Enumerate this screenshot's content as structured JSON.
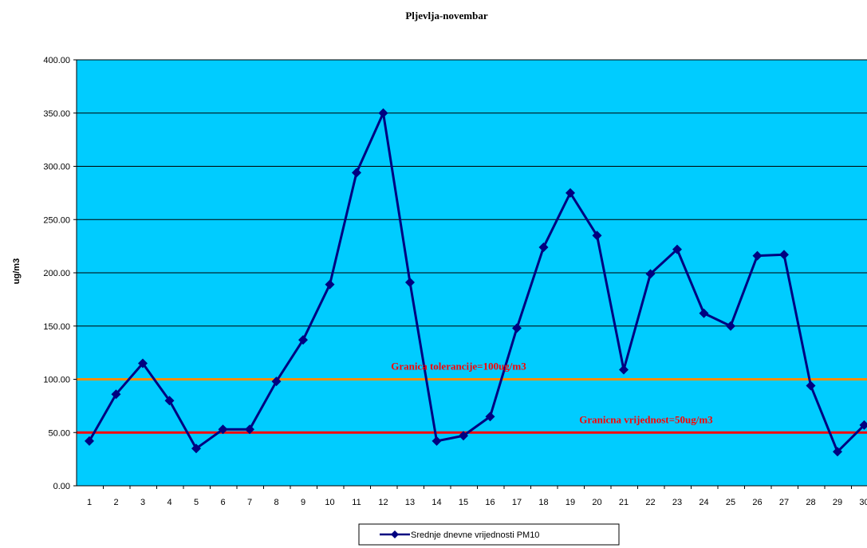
{
  "chart_data": {
    "type": "line",
    "title": "Pljevlja-novembar",
    "xlabel": "",
    "ylabel": "ug/m3",
    "ylim": [
      0,
      400
    ],
    "y_ticks": [
      "0.00",
      "50.00",
      "100.00",
      "150.00",
      "200.00",
      "250.00",
      "300.00",
      "350.00",
      "400.00"
    ],
    "categories": [
      "1",
      "2",
      "3",
      "4",
      "5",
      "6",
      "7",
      "8",
      "9",
      "10",
      "11",
      "12",
      "13",
      "14",
      "15",
      "16",
      "17",
      "18",
      "19",
      "20",
      "21",
      "22",
      "23",
      "24",
      "25",
      "26",
      "27",
      "28",
      "29",
      "30"
    ],
    "series": [
      {
        "name": "Srednje dnevne vrijednosti PM10",
        "color": "#000080",
        "marker": "diamond",
        "values": [
          42,
          86,
          115,
          80,
          35,
          53,
          53,
          98,
          137,
          189,
          294,
          350,
          191,
          42,
          47,
          65,
          148,
          224,
          275,
          235,
          109,
          199,
          222,
          162,
          150,
          216,
          217,
          94,
          32,
          57
        ]
      }
    ],
    "reference_lines": [
      {
        "value": 100,
        "color": "#ff8c00",
        "label": "Granica tolerancije=100ug/m3"
      },
      {
        "value": 50,
        "color": "#ff0000",
        "label": "Granicna vrijednost=50ug/m3"
      }
    ],
    "plot_background": "#00ccff",
    "grid": true,
    "legend_position": "bottom-center"
  }
}
